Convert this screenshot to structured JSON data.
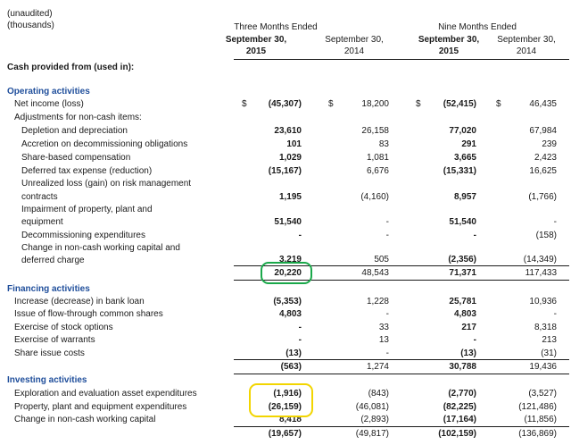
{
  "meta": {
    "unaudited": "(unaudited)",
    "thousands": "(thousands)"
  },
  "headers": {
    "three_months": "Three Months Ended",
    "nine_months": "Nine Months Ended",
    "col1a": "September 30,",
    "col1b": "2015",
    "col2a": "September 30,",
    "col2b": "2014",
    "col3a": "September 30,",
    "col3b": "2015",
    "col4a": "September 30,",
    "col4b": "2014"
  },
  "cash_provided": "Cash provided from (used in):",
  "dollar": "$",
  "sections": {
    "operating": "Operating activities",
    "financing": "Financing activities",
    "investing": "Investing activities"
  },
  "operating": {
    "net_income": {
      "label": "Net income (loss)",
      "v": [
        "(45,307)",
        "18,200",
        "(52,415)",
        "46,435"
      ]
    },
    "adjustments": "Adjustments for non-cash items:",
    "depletion": {
      "label": "Depletion and depreciation",
      "v": [
        "23,610",
        "26,158",
        "77,020",
        "67,984"
      ]
    },
    "accretion": {
      "label": "Accretion on decommissioning obligations",
      "v": [
        "101",
        "83",
        "291",
        "239"
      ]
    },
    "share_comp": {
      "label": "Share-based compensation",
      "v": [
        "1,029",
        "1,081",
        "3,665",
        "2,423"
      ]
    },
    "deferred_tax": {
      "label": "Deferred tax expense (reduction)",
      "v": [
        "(15,167)",
        "6,676",
        "(15,331)",
        "16,625"
      ]
    },
    "unrealized_1": "Unrealized loss (gain) on risk management",
    "unrealized_2": {
      "label": "contracts",
      "v": [
        "1,195",
        "(4,160)",
        "8,957",
        "(1,766)"
      ]
    },
    "impairment_1": "Impairment of property, plant and",
    "impairment_2": {
      "label": "equipment",
      "v": [
        "51,540",
        "-",
        "51,540",
        "-"
      ]
    },
    "decommissioning": {
      "label": "Decommissioning expenditures",
      "v": [
        "-",
        "-",
        "-",
        "(158)"
      ]
    },
    "change_1": "Change in non-cash working capital and",
    "change_2": {
      "label": "deferred charge",
      "v": [
        "3,219",
        "505",
        "(2,356)",
        "(14,349)"
      ]
    },
    "total": {
      "v": [
        "20,220",
        "48,543",
        "71,371",
        "117,433"
      ]
    }
  },
  "financing": {
    "bank_loan": {
      "label": "Increase (decrease) in bank loan",
      "v": [
        "(5,353)",
        "1,228",
        "25,781",
        "10,936"
      ]
    },
    "flow_through": {
      "label": "Issue of flow-through common shares",
      "v": [
        "4,803",
        "-",
        "4,803",
        "-"
      ]
    },
    "stock_options": {
      "label": "Exercise of stock options",
      "v": [
        "-",
        "33",
        "217",
        "8,318"
      ]
    },
    "warrants": {
      "label": "Exercise of warrants",
      "v": [
        "-",
        "13",
        "-",
        "213"
      ]
    },
    "issue_costs": {
      "label": "Share issue costs",
      "v": [
        "(13)",
        "-",
        "(13)",
        "(31)"
      ]
    },
    "total": {
      "v": [
        "(563)",
        "1,274",
        "30,788",
        "19,436"
      ]
    }
  },
  "investing": {
    "exploration": {
      "label": "Exploration and evaluation asset expenditures",
      "v": [
        "(1,916)",
        "(843)",
        "(2,770)",
        "(3,527)"
      ]
    },
    "ppe": {
      "label": "Property, plant and equipment expenditures",
      "v": [
        "(26,159)",
        "(46,081)",
        "(82,225)",
        "(121,486)"
      ]
    },
    "working_capital": {
      "label": "Change in non-cash working capital",
      "v": [
        "8,418",
        "(2,893)",
        "(17,164)",
        "(11,856)"
      ]
    },
    "total": {
      "v": [
        "(19,657)",
        "(49,817)",
        "(102,159)",
        "(136,869)"
      ]
    }
  },
  "highlight_colors": {
    "green": "#1aa84a",
    "yellow": "#f2d500",
    "section_blue": "#1f4e9b"
  }
}
